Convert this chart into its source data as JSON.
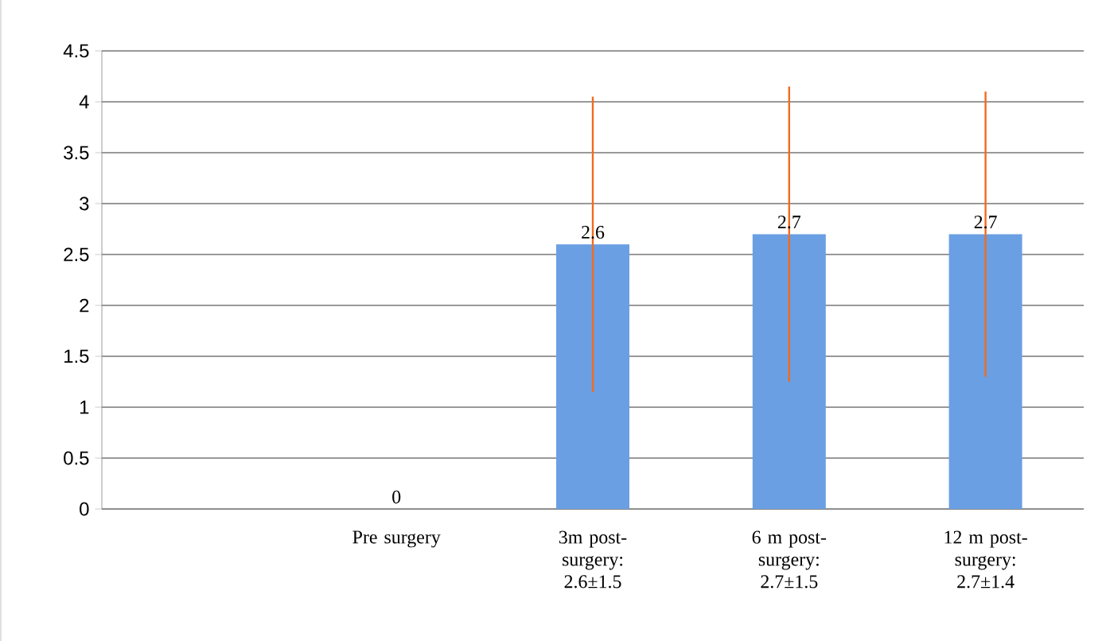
{
  "chart_data": {
    "type": "bar",
    "categories": [
      null,
      "Pre surgery",
      "3m post-surgery: 2.6±1.5",
      "6 m post-surgery: 2.7±1.5",
      "12 m post-surgery: 2.7±1.4"
    ],
    "values": [
      null,
      0,
      2.6,
      2.7,
      2.7
    ],
    "errors": [
      null,
      null,
      1.45,
      1.45,
      1.4
    ],
    "color": "#6a9fe3",
    "ylim": [
      0,
      4.5
    ],
    "yticks": [
      0,
      0.5,
      1,
      1.5,
      2,
      2.5,
      3,
      3.5,
      4,
      4.5
    ],
    "grid": "y",
    "data_labels": true
  }
}
